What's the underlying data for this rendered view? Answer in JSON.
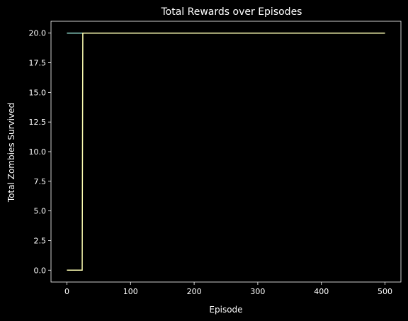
{
  "chart_data": {
    "type": "line",
    "title": "Total Rewards over Episodes",
    "xlabel": "Episode",
    "ylabel": "Total Zombies Survived",
    "xlim": [
      -25,
      525
    ],
    "ylim": [
      -1,
      21
    ],
    "xticks": [
      0,
      100,
      200,
      300,
      400,
      500
    ],
    "xtick_labels": [
      "0",
      "100",
      "200",
      "300",
      "400",
      "500"
    ],
    "yticks": [
      0,
      2.5,
      5,
      7.5,
      10,
      12.5,
      15,
      17.5,
      20
    ],
    "ytick_labels": [
      "0.0",
      "2.5",
      "5.0",
      "7.5",
      "10.0",
      "12.5",
      "15.0",
      "17.5",
      "20.0"
    ],
    "grid": false,
    "legend": false,
    "series": [
      {
        "color": "#8dd3c7",
        "x": [
          0,
          500
        ],
        "y": [
          20,
          20
        ]
      },
      {
        "color": "#feffb3",
        "x": [
          0,
          24,
          25,
          500
        ],
        "y": [
          0,
          0,
          20,
          20
        ]
      }
    ]
  },
  "colors": {
    "background": "#000000",
    "foreground": "#ffffff"
  }
}
